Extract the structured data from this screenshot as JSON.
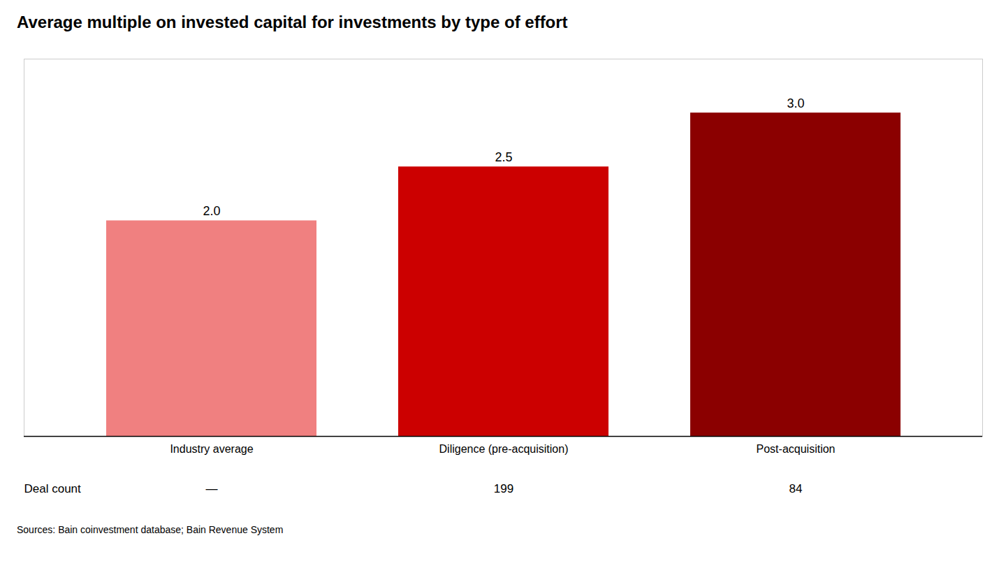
{
  "chart_data": {
    "type": "bar",
    "title": "Average multiple on invested capital for investments by type of effort",
    "categories": [
      "Industry average",
      "Diligence (pre-acquisition)",
      "Post-acquisition"
    ],
    "values": [
      2.0,
      2.5,
      3.0
    ],
    "value_labels": [
      "2.0",
      "2.5",
      "3.0"
    ],
    "colors": [
      "#F08080",
      "#CC0000",
      "#8B0000"
    ],
    "data_labels": true,
    "ylim": [
      0,
      3.5
    ],
    "grid": false,
    "tick_labels": "x",
    "deal_count_label": "Deal count",
    "deal_counts": [
      "—",
      "199",
      "84"
    ],
    "source": "Sources: Bain coinvestment database; Bain Revenue System"
  }
}
